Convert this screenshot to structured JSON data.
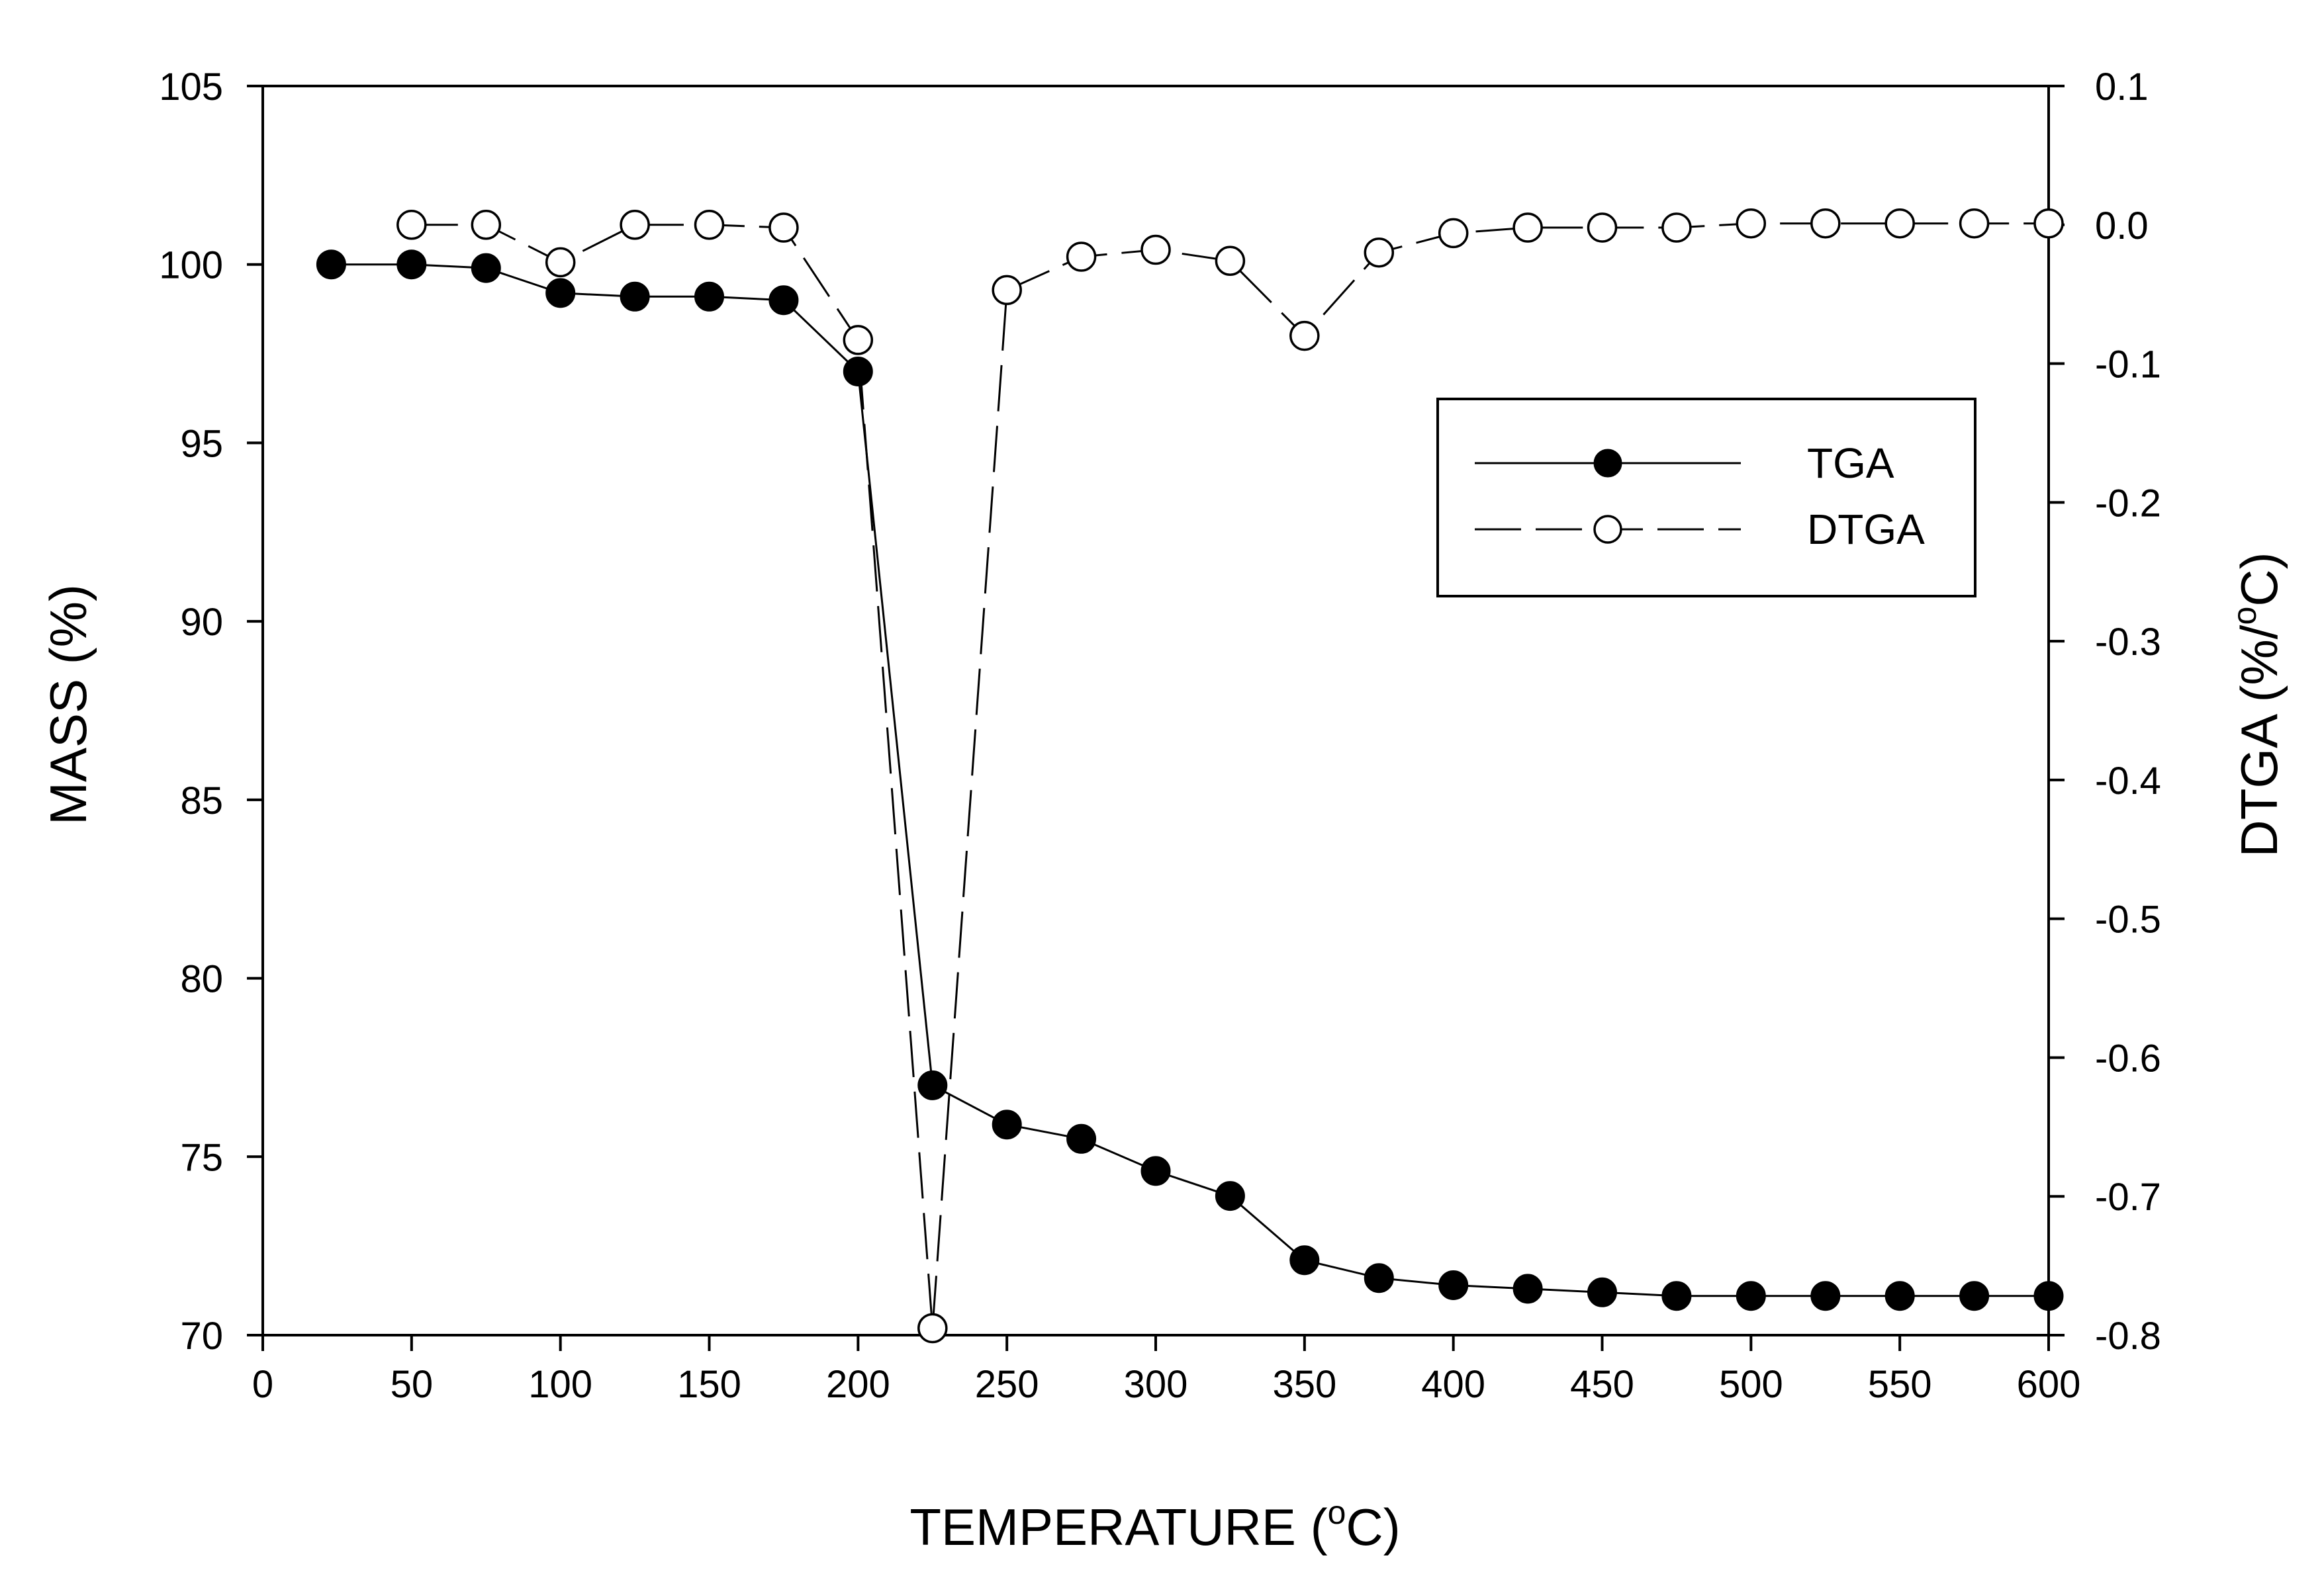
{
  "chart_data": {
    "type": "line",
    "title": "",
    "xlabel": "TEMPERATURE (",
    "xlabel_sup": "o",
    "xlabel_end": "C)",
    "ylabel": "MASS (%)",
    "y2label": "DTGA (%/",
    "y2label_sup": "o",
    "y2label_end": "C)",
    "xlim": [
      0,
      600
    ],
    "ylim": [
      70,
      105
    ],
    "y2lim": [
      -0.8,
      0.1
    ],
    "xticks": [
      "0",
      "50",
      "100",
      "150",
      "200",
      "250",
      "300",
      "350",
      "400",
      "450",
      "500",
      "550",
      "600"
    ],
    "yticks": [
      "70",
      "75",
      "80",
      "85",
      "90",
      "95",
      "100",
      "105"
    ],
    "y2ticks": [
      "-0.8",
      "-0.7",
      "-0.6",
      "-0.5",
      "-0.4",
      "-0.3",
      "-0.2",
      "-0.1",
      "0.0",
      "0.1"
    ],
    "legend_position": "upper-right",
    "series": [
      {
        "name": "TGA",
        "axis": "left",
        "style": "solid",
        "marker": "filled-circle",
        "x": [
          23,
          50,
          75,
          100,
          125,
          150,
          175,
          200,
          225,
          250,
          275,
          300,
          325,
          350,
          375,
          400,
          425,
          450,
          475,
          500,
          525,
          550,
          575,
          600
        ],
        "y": [
          100.0,
          100.0,
          99.9,
          99.2,
          99.1,
          99.1,
          99.0,
          97.0,
          77.0,
          75.9,
          75.5,
          74.6,
          73.9,
          72.1,
          71.6,
          71.4,
          71.3,
          71.2,
          71.1,
          71.1,
          71.1,
          71.1,
          71.1,
          71.1
        ]
      },
      {
        "name": "DTGA",
        "axis": "right",
        "style": "dashed",
        "marker": "open-circle",
        "x": [
          50,
          75,
          100,
          125,
          150,
          175,
          200,
          225,
          250,
          275,
          300,
          325,
          350,
          375,
          400,
          425,
          450,
          475,
          500,
          525,
          550,
          575,
          600
        ],
        "y": [
          0.0,
          0.0,
          -0.027,
          0.0,
          0.0,
          -0.002,
          -0.083,
          -0.795,
          -0.047,
          -0.023,
          -0.018,
          -0.026,
          -0.08,
          -0.02,
          -0.006,
          -0.002,
          -0.002,
          -0.002,
          0.001,
          0.001,
          0.001,
          0.001,
          0.001
        ]
      }
    ]
  }
}
